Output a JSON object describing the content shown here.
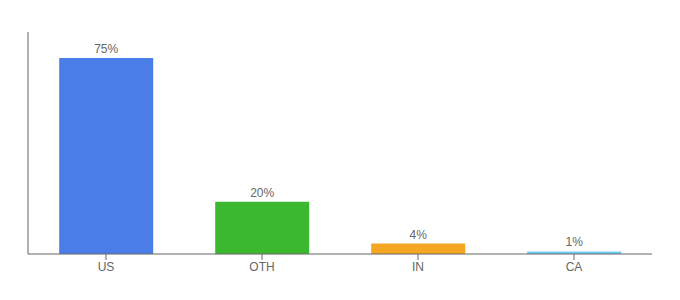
{
  "chart_data": {
    "type": "bar",
    "categories": [
      "US",
      "OTH",
      "IN",
      "CA"
    ],
    "values": [
      75,
      20,
      4,
      1
    ],
    "value_labels": [
      "75%",
      "20%",
      "4%",
      "1%"
    ],
    "colors": [
      "#4a7de8",
      "#3cb830",
      "#f5a623",
      "#6ecff6"
    ],
    "ylim": [
      0,
      85
    ],
    "data_labels": true,
    "tick_labels": "x",
    "grid": false
  }
}
